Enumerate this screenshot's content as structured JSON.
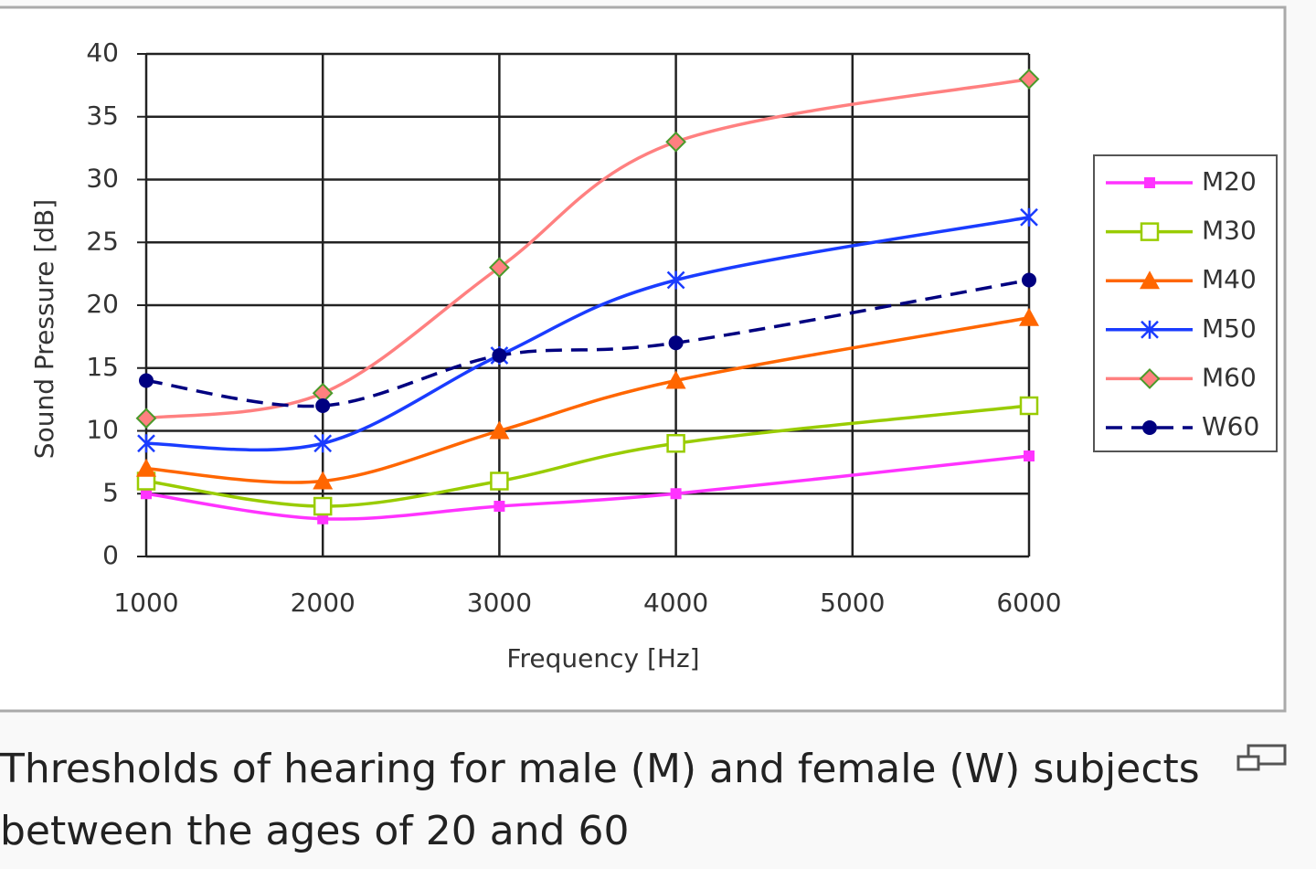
{
  "chart_data": {
    "type": "line",
    "x_label": "Frequency  [Hz]",
    "y_label": "Sound Pressure [dB]",
    "x": [
      1000,
      2000,
      3000,
      4000,
      6000
    ],
    "xlim": [
      1000,
      6000
    ],
    "xticks": [
      1000,
      2000,
      3000,
      4000,
      5000,
      6000
    ],
    "ylim": [
      0,
      40
    ],
    "yticks": [
      0,
      5,
      10,
      15,
      20,
      25,
      30,
      35,
      40
    ],
    "grid": true,
    "legend": "right",
    "series": [
      {
        "name": "M20",
        "color": "#ff33ff",
        "values": [
          5,
          3,
          4,
          5,
          8
        ]
      },
      {
        "name": "M30",
        "color": "#99cc00",
        "values": [
          6,
          4,
          6,
          9,
          12
        ]
      },
      {
        "name": "M40",
        "color": "#ff6600",
        "values": [
          7,
          6,
          10,
          14,
          19
        ]
      },
      {
        "name": "M50",
        "color": "#1a3cff",
        "values": [
          9,
          9,
          16,
          22,
          27
        ]
      },
      {
        "name": "M60",
        "color": "#ff8080",
        "values": [
          11,
          13,
          23,
          33,
          38
        ]
      },
      {
        "name": "W60",
        "color": "#000080",
        "values": [
          14,
          12,
          16,
          17,
          22
        ]
      }
    ]
  },
  "caption": "Thresholds of hearing for male (M) and female (W) subjects between the ages of 20 and 60"
}
